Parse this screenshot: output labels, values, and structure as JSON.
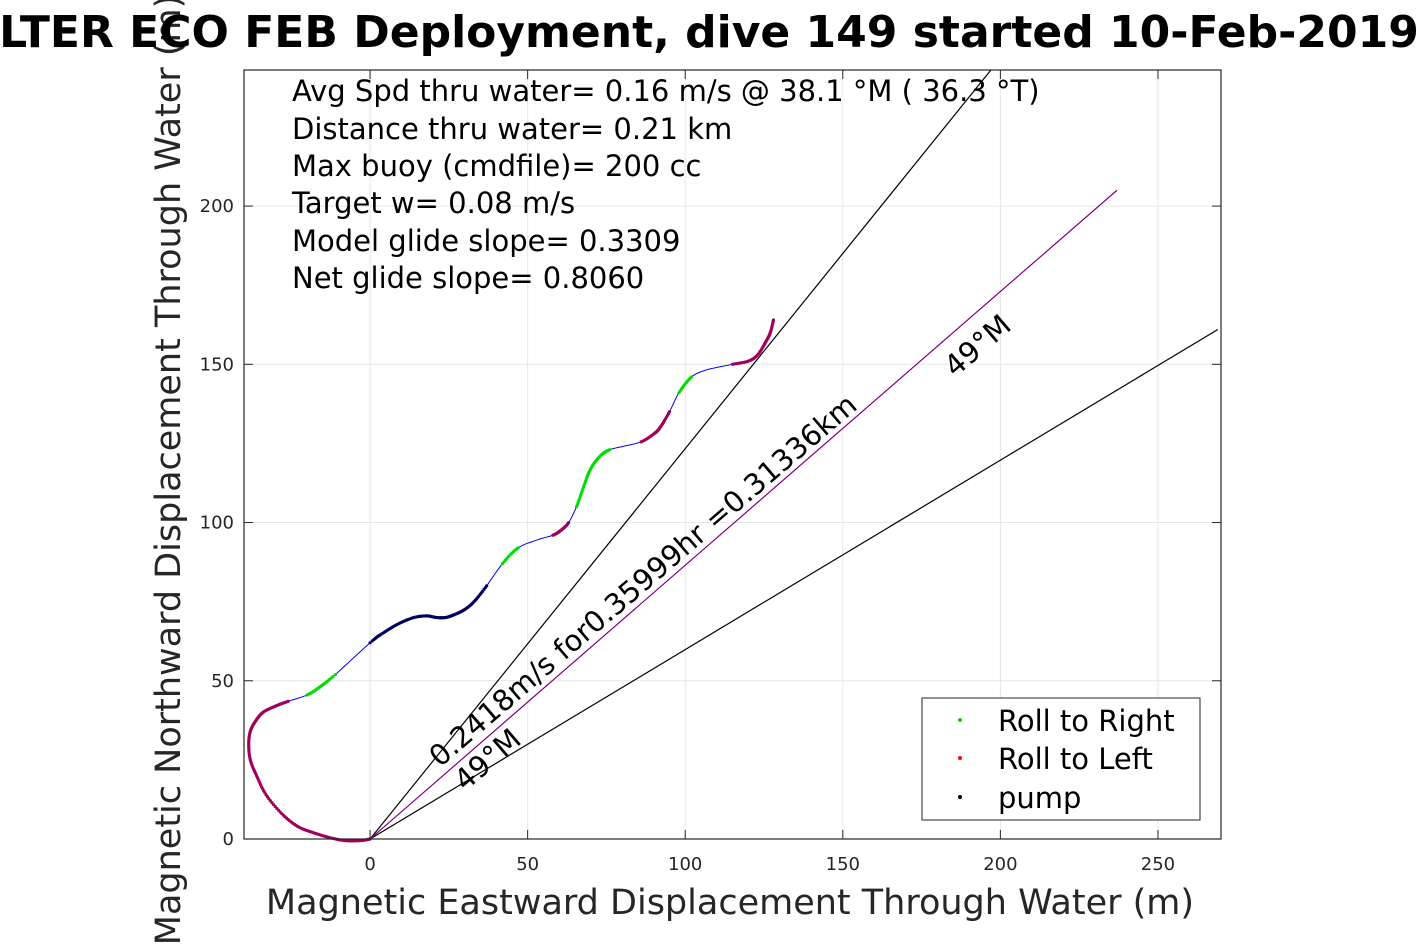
{
  "chart_data": {
    "type": "scatter",
    "title": "LTER ECO FEB Deployment, dive 149 started 10-Feb-2019",
    "xlabel": "Magnetic Eastward Displacement Through Water (m)",
    "ylabel": "Magnetic Northward Displacement Through Water (m)",
    "xlim": [
      -40,
      270
    ],
    "ylim": [
      0,
      243
    ],
    "xticks": [
      "0",
      "50",
      "100",
      "150",
      "200",
      "250"
    ],
    "xtick_values": [
      0,
      50,
      100,
      150,
      200,
      250
    ],
    "yticks": [
      "0",
      "50",
      "100",
      "150",
      "200"
    ],
    "ytick_values": [
      0,
      50,
      100,
      150,
      200
    ],
    "grid": true,
    "legend_position": "bottom-right",
    "info_lines": [
      "Avg Spd thru water=  0.16 m/s @  38.1 °M ( 36.3 °T)",
      "Distance thru water=  0.21 km",
      "Max buoy (cmdfile)= 200 cc",
      "Target w= 0.08 m/s",
      "Model glide slope= 0.3309",
      "Net glide slope= 0.8060"
    ],
    "annotations": {
      "speed": "0.2418m/s for0.35999hr =0.31336km",
      "heading_upper": "49°M",
      "heading_lower": "49°M"
    },
    "legend": [
      {
        "label": "Roll to Right",
        "color": "#00dd00"
      },
      {
        "label": "Roll to Left",
        "color": "#ff0000"
      },
      {
        "label": "pump",
        "color": "#000000"
      }
    ],
    "colors": {
      "track": "#0000ff",
      "roll_right": "#00dd00",
      "roll_left": "#ff0000",
      "pump": "#000000",
      "overlap_pump_left": "#a0005a",
      "overlap_pump_track": "#000060",
      "reference_line": "#000000",
      "mean_heading_line": "#c000c0",
      "grid": "#e6e6e6"
    },
    "reference_lines": [
      {
        "name": "upper",
        "x": [
          0,
          197
        ],
        "y": [
          0,
          243
        ]
      },
      {
        "name": "lower",
        "x": [
          0,
          269
        ],
        "y": [
          0,
          161
        ]
      },
      {
        "name": "mean",
        "x": [
          0,
          237
        ],
        "y": [
          0,
          205
        ]
      }
    ],
    "track": {
      "x": [
        0,
        -3,
        -8,
        -13,
        -18,
        -23,
        -28,
        -33,
        -36,
        -38,
        -38.5,
        -38,
        -36.5,
        -34,
        -30,
        -26,
        -20,
        -16,
        -11,
        0,
        4,
        9,
        14,
        18,
        21,
        24,
        27,
        30,
        33,
        37,
        42,
        47,
        53,
        58,
        60.5,
        63,
        65.5,
        68,
        70,
        73,
        76,
        80,
        86,
        90,
        92,
        95,
        98,
        102,
        106,
        110,
        115,
        120,
        123,
        125.5,
        127,
        128
      ],
      "y": [
        0,
        -0.5,
        -0.5,
        0.5,
        2,
        4,
        8,
        14,
        20,
        25,
        30,
        34,
        37,
        40,
        42,
        43.5,
        45.5,
        48,
        52,
        62,
        65,
        68,
        70,
        70.5,
        70,
        70,
        71,
        72.5,
        75,
        80,
        87,
        92,
        94.5,
        96,
        97.5,
        100,
        105,
        112,
        117,
        121,
        123,
        124,
        125.5,
        128,
        130,
        135,
        141,
        146,
        148,
        149,
        150,
        151,
        153,
        157,
        160,
        164
      ]
    },
    "segments": [
      {
        "kind": "overlap_pump_left",
        "from": 0,
        "to": 14
      },
      {
        "kind": "overlap_pump_left",
        "from": 14,
        "to": 15
      },
      {
        "kind": "roll_right",
        "from": 16,
        "to": 18
      },
      {
        "kind": "overlap_pump_track",
        "from": 19,
        "to": 29
      },
      {
        "kind": "roll_right",
        "from": 30,
        "to": 31
      },
      {
        "kind": "overlap_pump_left",
        "from": 33,
        "to": 35
      },
      {
        "kind": "roll_right",
        "from": 36,
        "to": 40
      },
      {
        "kind": "overlap_pump_left",
        "from": 42,
        "to": 45
      },
      {
        "kind": "roll_right",
        "from": 46,
        "to": 47
      },
      {
        "kind": "overlap_pump_left",
        "from": 50,
        "to": 55
      }
    ]
  }
}
